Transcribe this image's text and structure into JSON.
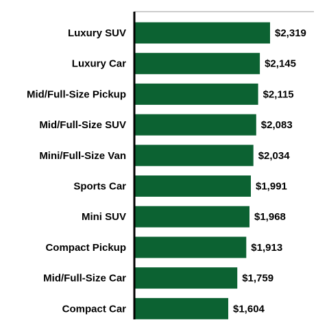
{
  "chart_data": {
    "type": "bar",
    "orientation": "horizontal",
    "title": "",
    "xlabel": "",
    "ylabel": "",
    "categories": [
      "Luxury SUV",
      "Luxury Car",
      "Mid/Full-Size Pickup",
      "Mid/Full-Size SUV",
      "Mini/Full-Size Van",
      "Sports Car",
      "Mini SUV",
      "Compact Pickup",
      "Mid/Full-Size Car",
      "Compact Car"
    ],
    "values": [
      2319,
      2145,
      2115,
      2083,
      2034,
      1991,
      1968,
      1913,
      1759,
      1604
    ],
    "value_labels": [
      "$2,319",
      "$2,145",
      "$2,115",
      "$2,083",
      "$2,034",
      "$1,991",
      "$1,968",
      "$1,913",
      "$1,759",
      "$1,604"
    ],
    "xlim": [
      0,
      2319
    ],
    "grid": false,
    "legend": "none",
    "colors": {
      "bar": "#0c6232",
      "axis": "#000000",
      "top_rule": "#9a9a9a"
    }
  }
}
